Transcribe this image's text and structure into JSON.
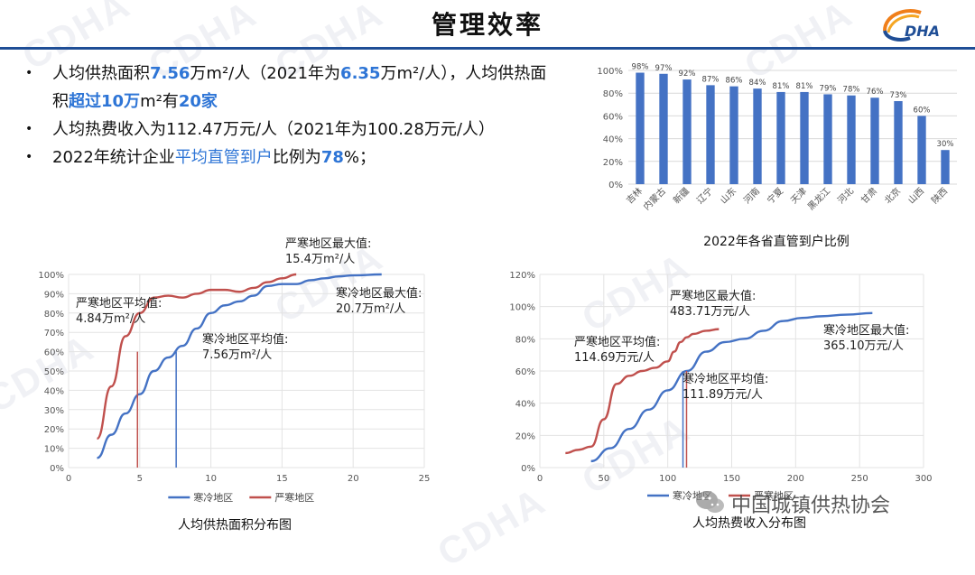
{
  "page": {
    "title": "管理效率",
    "logo_text": "DHA",
    "watermark": "CDHA",
    "footer_wechat": "中国城镇供热协会"
  },
  "bullets": [
    {
      "segments": [
        {
          "text": "人均供热面积",
          "style": "normal"
        },
        {
          "text": "7.56",
          "style": "highlight"
        },
        {
          "text": "万m²/人（2021年为",
          "style": "normal"
        },
        {
          "text": "6.35",
          "style": "highlight"
        },
        {
          "text": "万m²/人），人均供热面积",
          "style": "normal"
        },
        {
          "text": "超过10万",
          "style": "highlight"
        },
        {
          "text": "m²有",
          "style": "normal"
        },
        {
          "text": "20家",
          "style": "highlight"
        }
      ]
    },
    {
      "segments": [
        {
          "text": "人均热费收入为112.47万元/人（2021年为100.28万元/人）",
          "style": "normal"
        }
      ]
    },
    {
      "segments": [
        {
          "text": "2022年统计企业",
          "style": "normal"
        },
        {
          "text": "平均直管到户",
          "style": "link"
        },
        {
          "text": "比例为",
          "style": "normal"
        },
        {
          "text": "78",
          "style": "highlight"
        },
        {
          "text": "%；",
          "style": "normal"
        }
      ]
    }
  ],
  "colors": {
    "blue": "#4472c4",
    "red": "#c0504d",
    "accent": "#2e75d6",
    "title_bar": "#1f4e96"
  },
  "chart_data": [
    {
      "type": "bar",
      "title": "2022年各省直管到户比例",
      "categories": [
        "吉林",
        "内蒙古",
        "新疆",
        "辽宁",
        "山东",
        "河南",
        "宁夏",
        "天津",
        "黑龙江",
        "河北",
        "甘肃",
        "北京",
        "山西",
        "陕西"
      ],
      "values": [
        98,
        97,
        92,
        87,
        86,
        84,
        81,
        81,
        79,
        78,
        76,
        73,
        60,
        30
      ],
      "value_labels": [
        "98%",
        "97%",
        "92%",
        "87%",
        "86%",
        "84%",
        "81%",
        "81%",
        "79%",
        "78%",
        "76%",
        "73%",
        "60%",
        "30%"
      ],
      "ylim": [
        0,
        100
      ],
      "yticks": [
        "0%",
        "20%",
        "40%",
        "60%",
        "80%",
        "100%"
      ],
      "ytick_values": [
        0,
        20,
        40,
        60,
        80,
        100
      ],
      "grid": true
    },
    {
      "type": "line",
      "title": "人均供热面积分布图",
      "xlim": [
        0,
        25
      ],
      "ylim": [
        0,
        100
      ],
      "xticks": [
        "0",
        "5",
        "10",
        "15",
        "20",
        "25"
      ],
      "xtick_values": [
        0,
        5,
        10,
        15,
        20,
        25
      ],
      "yticks": [
        "0%",
        "10%",
        "20%",
        "30%",
        "40%",
        "50%",
        "60%",
        "70%",
        "80%",
        "90%",
        "100%"
      ],
      "ytick_values": [
        0,
        10,
        20,
        30,
        40,
        50,
        60,
        70,
        80,
        90,
        100
      ],
      "grid": true,
      "legend": "bottom",
      "series": [
        {
          "name": "寒冷地区",
          "color": "#4472c4",
          "x": [
            2,
            3,
            4,
            5,
            6,
            7,
            8,
            9,
            10,
            11,
            12,
            13,
            14,
            15,
            16,
            17,
            18,
            19,
            20,
            22
          ],
          "y": [
            5,
            17,
            28,
            38,
            50,
            57,
            63,
            72,
            80,
            84,
            86,
            89,
            94,
            95,
            95,
            97,
            98,
            99,
            99.5,
            100
          ]
        },
        {
          "name": "严寒地区",
          "color": "#c0504d",
          "x": [
            2,
            3,
            4,
            5,
            6,
            7,
            8,
            9,
            10,
            11,
            12,
            13,
            14,
            15,
            16
          ],
          "y": [
            15,
            42,
            68,
            80,
            88,
            89,
            88,
            90,
            92,
            92,
            91,
            93,
            96,
            98,
            100
          ]
        }
      ],
      "markers": [
        {
          "x": 4.84,
          "series": "严寒地区"
        },
        {
          "x": 7.56,
          "series": "寒冷地区"
        }
      ],
      "annotations": [
        {
          "lines": [
            "严寒地区最大值:",
            "15.4万m²/人"
          ]
        },
        {
          "lines": [
            "严寒地区平均值:",
            "4.84万m²/人"
          ]
        },
        {
          "lines": [
            "寒冷地区最大值:",
            "20.7万m²/人"
          ]
        },
        {
          "lines": [
            "寒冷地区平均值:",
            "7.56万m²/人"
          ]
        }
      ]
    },
    {
      "type": "line",
      "title": "人均热费收入分布图",
      "xlim": [
        0,
        300
      ],
      "ylim": [
        0,
        120
      ],
      "xticks": [
        "0",
        "50",
        "100",
        "150",
        "200",
        "250",
        "300"
      ],
      "xtick_values": [
        0,
        50,
        100,
        150,
        200,
        250,
        300
      ],
      "yticks": [
        "0%",
        "20%",
        "40%",
        "60%",
        "80%",
        "100%",
        "120%"
      ],
      "ytick_values": [
        0,
        20,
        40,
        60,
        80,
        100,
        120
      ],
      "grid": true,
      "legend": "bottom",
      "series": [
        {
          "name": "寒冷地区",
          "color": "#4472c4",
          "x": [
            40,
            55,
            70,
            85,
            100,
            115,
            130,
            145,
            160,
            175,
            190,
            205,
            220,
            240,
            260
          ],
          "y": [
            4,
            12,
            24,
            36,
            48,
            60,
            72,
            78,
            80,
            85,
            91,
            93,
            94,
            95,
            96
          ]
        },
        {
          "name": "严寒地区",
          "color": "#c0504d",
          "x": [
            20,
            30,
            40,
            50,
            60,
            70,
            80,
            90,
            100,
            105,
            110,
            115,
            120,
            130,
            140
          ],
          "y": [
            9,
            11,
            13,
            30,
            52,
            57,
            60,
            62,
            66,
            72,
            78,
            81,
            83,
            85,
            86
          ]
        }
      ],
      "markers": [
        {
          "x": 111.89,
          "series": "寒冷地区"
        },
        {
          "x": 114.69,
          "series": "严寒地区"
        }
      ],
      "annotations": [
        {
          "lines": [
            "严寒地区最大值:",
            "483.71万元/人"
          ]
        },
        {
          "lines": [
            "严寒地区平均值:",
            "114.69万元/人"
          ]
        },
        {
          "lines": [
            "寒冷地区最大值:",
            "365.10万元/人"
          ]
        },
        {
          "lines": [
            "寒冷地区平均值:",
            "111.89万元/人"
          ]
        }
      ]
    }
  ]
}
